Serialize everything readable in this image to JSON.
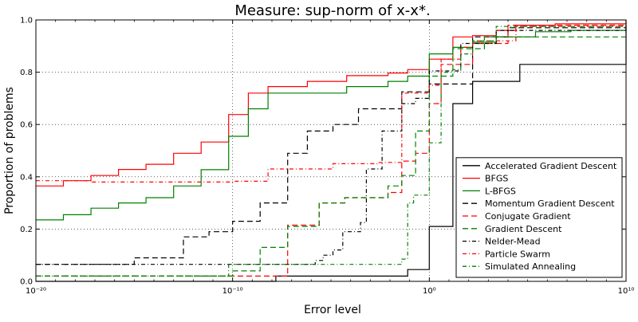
{
  "chart_data": {
    "type": "line",
    "step": true,
    "title": "Measure: sup-norm of x-x*.",
    "xlabel": "Error level",
    "ylabel": "Proportion of problems",
    "xscale": "log",
    "xlim_exponent": [
      -20,
      10
    ],
    "ylim": [
      0.0,
      1.0
    ],
    "x_tick_exponents": [
      -20,
      -10,
      0,
      10
    ],
    "x_tick_labels": [
      "10⁻²⁰",
      "10⁻¹⁰",
      "10⁰",
      "10¹⁰"
    ],
    "y_ticks": [
      0.0,
      0.2,
      0.4,
      0.6,
      0.8,
      1.0
    ],
    "y_tick_labels": [
      "0.0",
      "0.2",
      "0.4",
      "0.6",
      "0.8",
      "1.0"
    ],
    "grid": true,
    "legend_position": "lower-right",
    "series": [
      {
        "name": "Accelerated Gradient Descent",
        "color": "#000000",
        "dash": "solid",
        "x_exponent": [
          -20,
          -7.8,
          -1.1,
          -1.1,
          0,
          0,
          1.2,
          1.2,
          2.2,
          2.2,
          4.6,
          4.6,
          10
        ],
        "y": [
          0,
          0.02,
          0.02,
          0.045,
          0.045,
          0.21,
          0.21,
          0.68,
          0.68,
          0.765,
          0.765,
          0.83,
          0.97
        ]
      },
      {
        "name": "BFGS",
        "color": "#ff0000",
        "dash": "solid",
        "x_exponent": [
          -20,
          -18.6,
          -17.2,
          -15.8,
          -14.4,
          -13,
          -11.6,
          -10.2,
          -9.2,
          -8.2,
          -6.2,
          -4.2,
          -2.1,
          -1.1,
          0,
          1.2,
          2.2,
          3.4,
          4.4,
          6.4,
          10
        ],
        "y": [
          0.365,
          0.385,
          0.405,
          0.428,
          0.448,
          0.49,
          0.533,
          0.638,
          0.72,
          0.745,
          0.765,
          0.787,
          0.797,
          0.81,
          0.85,
          0.935,
          0.94,
          0.96,
          0.98,
          0.985,
          1.0
        ]
      },
      {
        "name": "L-BFGS",
        "color": "#008000",
        "dash": "solid",
        "x_exponent": [
          -20,
          -18.6,
          -17.2,
          -15.8,
          -14.4,
          -13,
          -11.6,
          -10.2,
          -9.2,
          -8.2,
          -4.2,
          -2.1,
          -1.1,
          0,
          1.2,
          2.2,
          3.4,
          5.4,
          7.2,
          10
        ],
        "y": [
          0.235,
          0.255,
          0.28,
          0.3,
          0.32,
          0.365,
          0.427,
          0.555,
          0.66,
          0.72,
          0.745,
          0.765,
          0.785,
          0.87,
          0.895,
          0.915,
          0.935,
          0.955,
          0.96,
          0.96
        ]
      },
      {
        "name": "Momentum Gradient Descent",
        "color": "#000000",
        "dash": "longdash",
        "x_exponent": [
          -20,
          -15,
          -12.5,
          -11.2,
          -10,
          -8.6,
          -7.2,
          -6.2,
          -4.9,
          -3.6,
          -1.4,
          0,
          2.2,
          4,
          10
        ],
        "y": [
          0.065,
          0.09,
          0.17,
          0.19,
          0.23,
          0.3,
          0.49,
          0.575,
          0.6,
          0.66,
          0.725,
          0.755,
          0.935,
          0.97,
          0.98
        ]
      },
      {
        "name": "Conjugate Gradient",
        "color": "#ff0000",
        "dash": "longdash",
        "x_exponent": [
          -20,
          -8.6,
          -7.2,
          -5.6,
          -4.3,
          -3.2,
          -2.1,
          -1.4,
          -0.7,
          0,
          0.6,
          2.2,
          4,
          10
        ],
        "y": [
          0.02,
          0.02,
          0.215,
          0.3,
          0.32,
          0.32,
          0.34,
          0.46,
          0.49,
          0.68,
          0.83,
          0.91,
          0.98,
          0.985
        ]
      },
      {
        "name": "Gradient Descent",
        "color": "#008000",
        "dash": "longdash",
        "x_exponent": [
          -20,
          -11,
          -10,
          -8.6,
          -7.2,
          -5.6,
          -4.3,
          -3.2,
          -2.1,
          -1.4,
          -0.7,
          0,
          1.2,
          2.8,
          10
        ],
        "y": [
          0.02,
          0.02,
          0.04,
          0.13,
          0.21,
          0.3,
          0.32,
          0.32,
          0.365,
          0.405,
          0.575,
          0.785,
          0.89,
          0.935,
          0.955
        ]
      },
      {
        "name": "Nelder-Mead",
        "color": "#000000",
        "dash": "dashdot",
        "x_exponent": [
          -20,
          -8.6,
          -6.2,
          -5.8,
          -5.4,
          -4.9,
          -4.4,
          -3.5,
          -3.2,
          -2.4,
          -1.4,
          -0.7,
          0,
          1.6,
          3.4,
          10
        ],
        "y": [
          0.065,
          0.065,
          0.065,
          0.08,
          0.1,
          0.12,
          0.19,
          0.225,
          0.43,
          0.575,
          0.68,
          0.7,
          0.805,
          0.91,
          0.96,
          0.98
        ]
      },
      {
        "name": "Particle Swarm",
        "color": "#ff0000",
        "dash": "dashdot",
        "x_exponent": [
          -20,
          -18.6,
          -17.2,
          -14.4,
          -11.6,
          -10,
          -8.2,
          -6.2,
          -4.9,
          -3.6,
          -2.6,
          -1.4,
          -0.7,
          0,
          0.6,
          1.6,
          2.2,
          4.4,
          10
        ],
        "y": [
          0.385,
          0.385,
          0.38,
          0.38,
          0.38,
          0.383,
          0.43,
          0.43,
          0.45,
          0.45,
          0.455,
          0.72,
          0.72,
          0.75,
          0.85,
          0.895,
          0.92,
          0.975,
          0.995
        ]
      },
      {
        "name": "Simulated Annealing",
        "color": "#008000",
        "dash": "dashdot",
        "x_exponent": [
          -20,
          -10.2,
          -8.2,
          -6.2,
          -4.2,
          -2.1,
          -1.4,
          -1.1,
          -0.8,
          0,
          0.6,
          1.2,
          1.6,
          2.2,
          3.4,
          10
        ],
        "y": [
          0.02,
          0.065,
          0.065,
          0.065,
          0.065,
          0.065,
          0.085,
          0.3,
          0.33,
          0.53,
          0.8,
          0.81,
          0.87,
          0.92,
          0.975,
          1.0
        ]
      }
    ]
  }
}
